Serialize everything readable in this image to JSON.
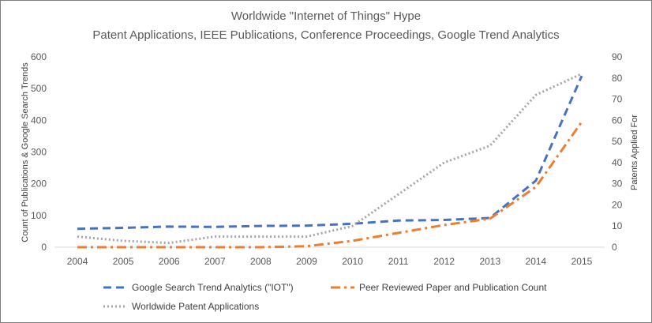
{
  "chart_data": {
    "type": "line",
    "title": "Worldwide \"Internet of Things\" Hype",
    "subtitle": "Patent Applications, IEEE Publications, Conference Proceedings, Google Trend Analytics",
    "ylabel_left": "Count of Publications & Google Search Trends",
    "ylabel_right": "Patents Applied For",
    "x": [
      "2004",
      "2005",
      "2006",
      "2007",
      "2008",
      "2009",
      "2010",
      "2011",
      "2012",
      "2013",
      "2014",
      "2015"
    ],
    "ylim_left": [
      0,
      600
    ],
    "ylim_right": [
      0,
      90
    ],
    "yticks_left": [
      "0",
      "100",
      "200",
      "300",
      "400",
      "500",
      "600"
    ],
    "yticks_right": [
      "0",
      "10",
      "20",
      "30",
      "40",
      "50",
      "60",
      "70",
      "80",
      "90"
    ],
    "grid": false,
    "legend": "bottom",
    "series": [
      {
        "name": "Google Search Trend Analytics (\"IOT\")",
        "axis": "left",
        "color": "#4472C4",
        "style": "dashed",
        "values": [
          58,
          61,
          65,
          64,
          67,
          68,
          74,
          84,
          86,
          92,
          210,
          540
        ]
      },
      {
        "name": "Peer Reviewed Paper and Publication Count",
        "axis": "left",
        "color": "#ED7D31",
        "style": "dash-dot",
        "values": [
          0,
          0,
          0,
          0,
          0,
          3,
          20,
          45,
          70,
          90,
          190,
          395
        ]
      },
      {
        "name": "Worldwide Patent Applications",
        "axis": "right",
        "color": "#A5A5A5",
        "style": "dotted",
        "values": [
          5,
          3,
          2,
          5,
          5,
          5,
          10,
          25,
          40,
          48,
          72,
          82
        ]
      }
    ]
  }
}
